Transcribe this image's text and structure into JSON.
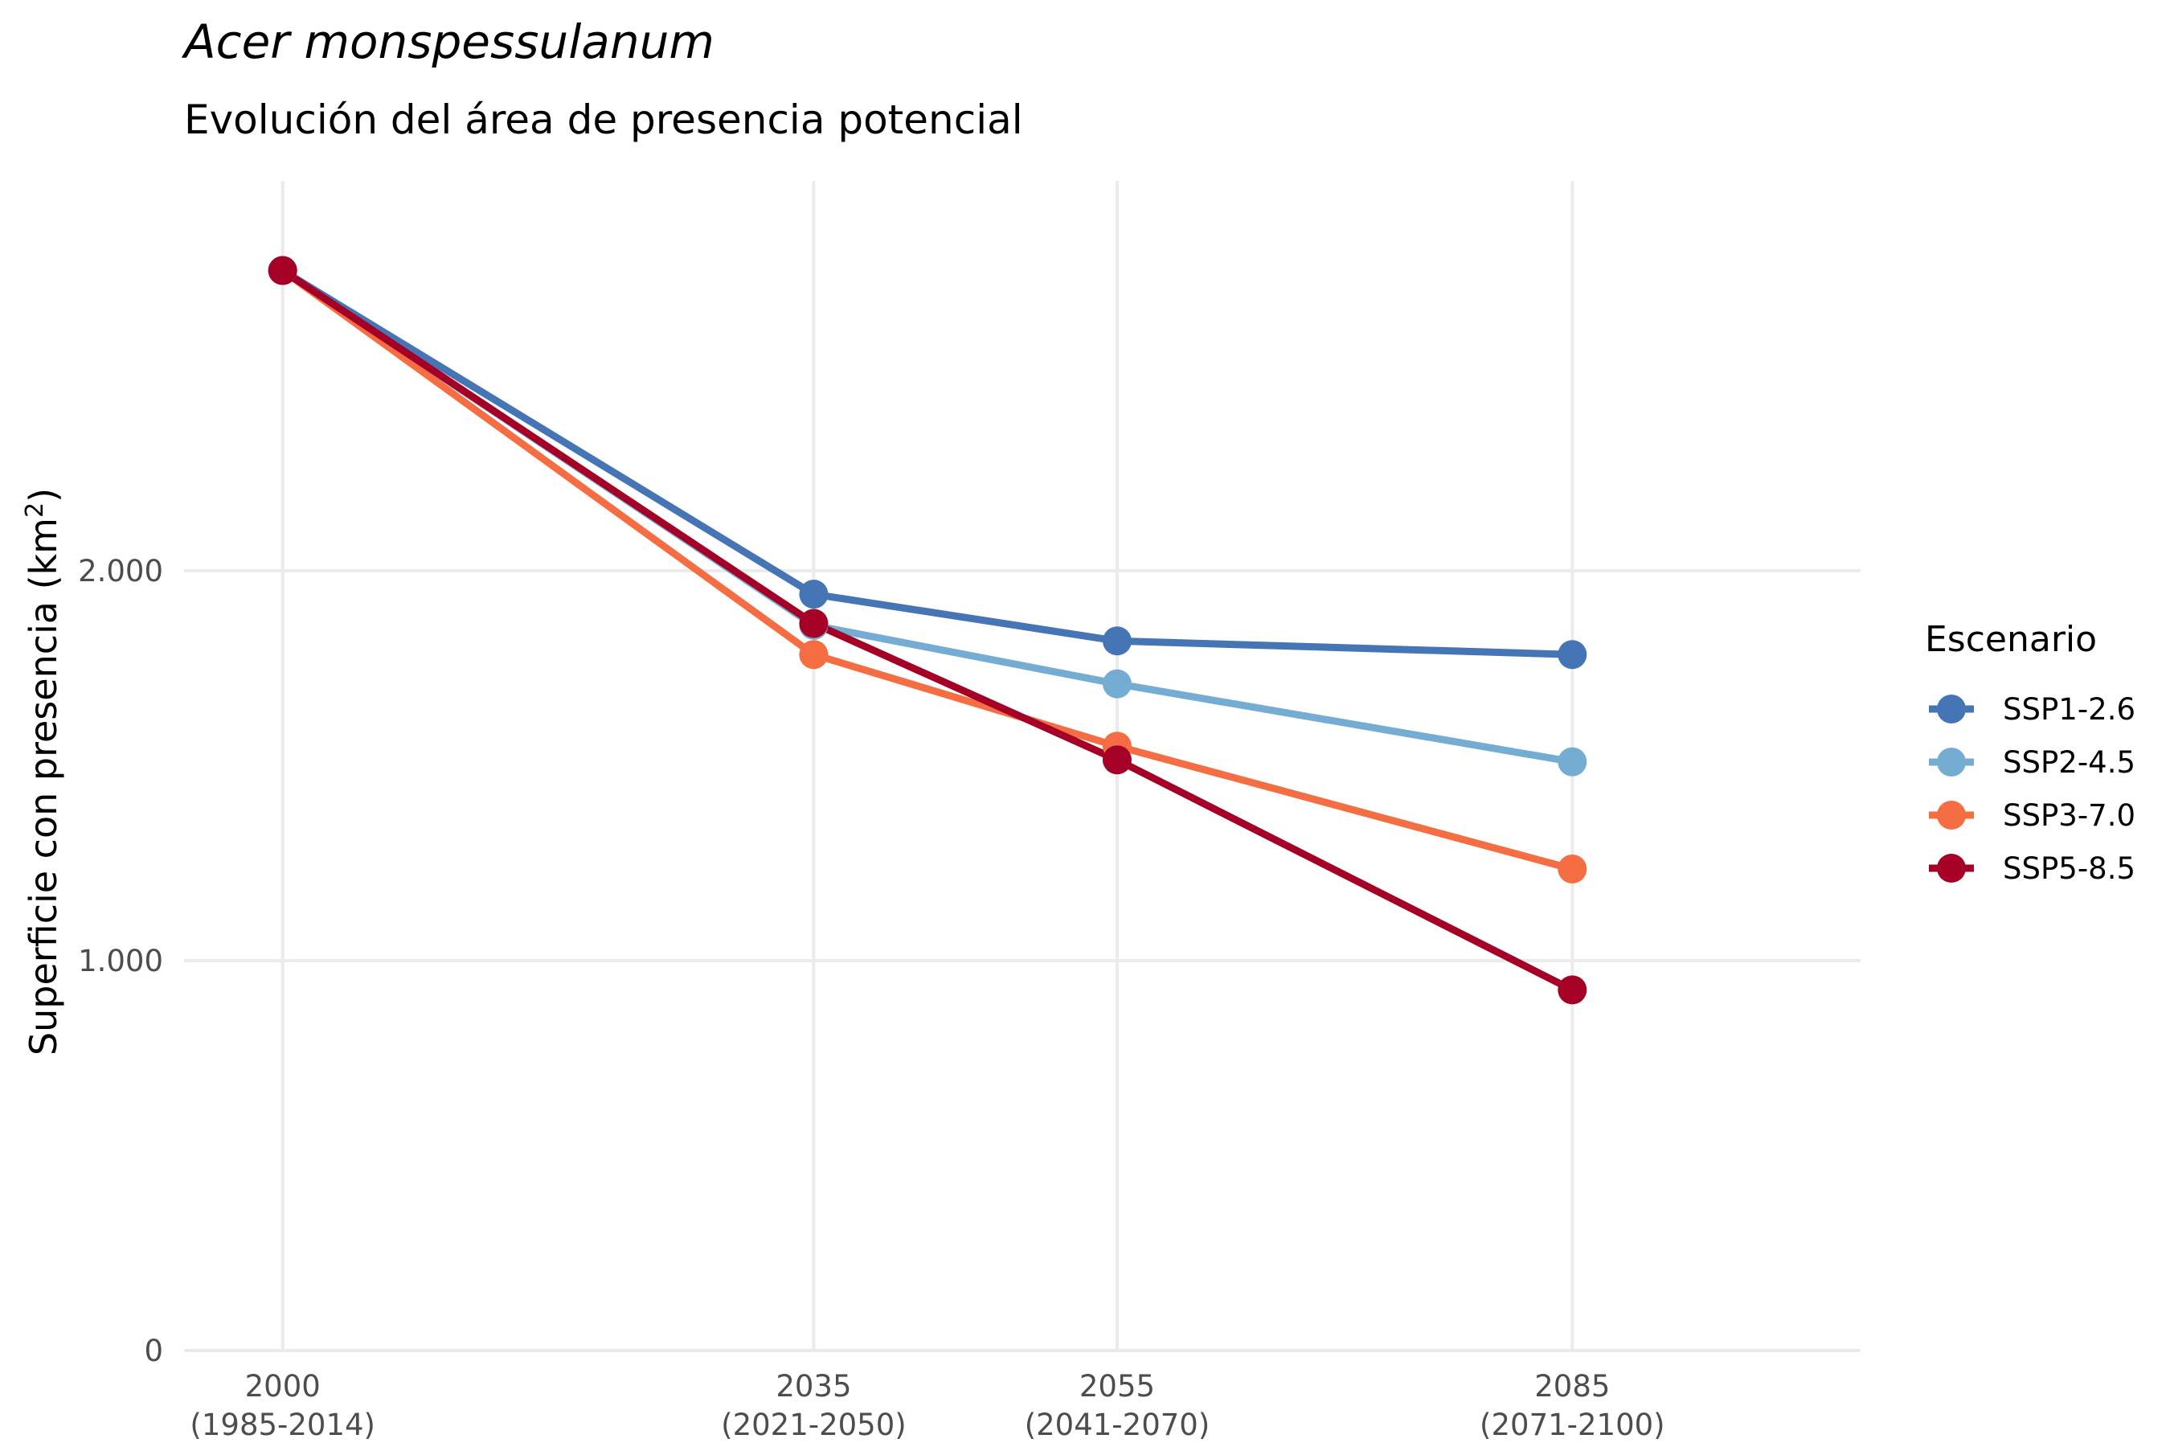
{
  "chart_data": {
    "type": "line",
    "title": "Acer monspessulanum",
    "subtitle": "Evolución del área de presencia potencial",
    "ylabel": "Superficie con presencia (km",
    "ylabel_sup": "2",
    "ylabel_close": ")",
    "xlabel": "",
    "x": [
      2000,
      2035,
      2055,
      2085
    ],
    "x_tick_labels": [
      [
        "2000",
        "(1985-2014)"
      ],
      [
        "2035",
        "(2021-2050)"
      ],
      [
        "2055",
        "(2041-2070)"
      ],
      [
        "2085",
        "(2071-2100)"
      ]
    ],
    "ylim": [
      0,
      3000
    ],
    "xlim": [
      1993.5,
      2104
    ],
    "y_ticks": [
      0,
      1000,
      2000
    ],
    "y_tick_labels": [
      "0",
      "1.000",
      "2.000"
    ],
    "grid": true,
    "legend_title": "Escenario",
    "legend_position": "right",
    "series": [
      {
        "name": "SSP1-2.6",
        "color": "#4575b4",
        "values": [
          2770,
          1940,
          1820,
          1785
        ]
      },
      {
        "name": "SSP2-4.5",
        "color": "#74add1",
        "values": [
          2770,
          1860,
          1710,
          1510
        ]
      },
      {
        "name": "SSP3-7.0",
        "color": "#f46d43",
        "values": [
          2770,
          1785,
          1550,
          1235
        ]
      },
      {
        "name": "SSP5-8.5",
        "color": "#a50026",
        "values": [
          2770,
          1865,
          1515,
          925
        ]
      }
    ]
  }
}
